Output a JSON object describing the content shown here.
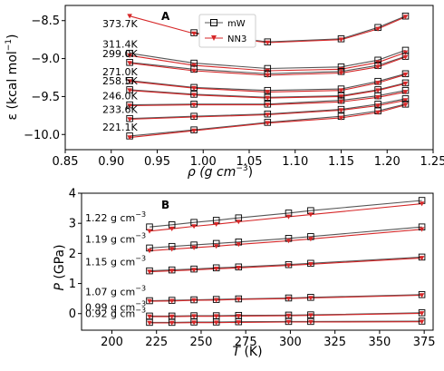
{
  "chart_data": [
    {
      "panel": "A",
      "type": "line",
      "xlabel_main": "ρ (g cm",
      "xlabel_exp": "−3",
      "xlabel_end": ")",
      "ylabel_main": "ε (kcal mol",
      "ylabel_exp": "−1",
      "ylabel_end": ")",
      "xlim": [
        0.85,
        1.25
      ],
      "ylim": [
        -10.2,
        -8.3
      ],
      "xticks": [
        0.85,
        0.9,
        0.95,
        1.0,
        1.05,
        1.1,
        1.15,
        1.2,
        1.25
      ],
      "xtick_labels": [
        "0.85",
        "0.90",
        "0.95",
        "1.00",
        "1.05",
        "1.10",
        "1.15",
        "1.20",
        "1.25"
      ],
      "yticks": [
        -10.0,
        -9.5,
        -9.0,
        -8.5
      ],
      "ytick_labels": [
        "−10.0",
        "−9.5",
        "−9.0",
        "−8.5"
      ],
      "legend": {
        "position": "top-center",
        "entries": [
          "mW",
          "NN3"
        ]
      },
      "x": [
        0.92,
        0.99,
        1.07,
        1.15,
        1.19,
        1.22
      ],
      "curves": [
        {
          "label": "373.7K",
          "mW": [
            null,
            -8.66,
            -8.78,
            -8.74,
            -8.59,
            -8.44
          ],
          "NN3": [
            -8.44,
            -8.67,
            -8.79,
            -8.75,
            -8.61,
            -8.45
          ]
        },
        {
          "label": "311.4K",
          "mW": [
            -8.93,
            -9.06,
            -9.13,
            -9.11,
            -9.02,
            -8.89
          ],
          "NN3": [
            -8.96,
            -9.09,
            -9.16,
            -9.14,
            -9.05,
            -8.92
          ]
        },
        {
          "label": "299.0K",
          "mW": [
            -9.05,
            -9.14,
            -9.2,
            -9.17,
            -9.09,
            -8.97
          ],
          "NN3": [
            -9.06,
            -9.16,
            -9.22,
            -9.19,
            -9.11,
            -8.98
          ]
        },
        {
          "label": "271.0K",
          "mW": [
            -9.29,
            -9.38,
            -9.42,
            -9.4,
            -9.3,
            -9.2
          ],
          "NN3": [
            -9.3,
            -9.39,
            -9.44,
            -9.42,
            -9.32,
            -9.21
          ]
        },
        {
          "label": "258.5K",
          "mW": [
            -9.41,
            -9.47,
            -9.51,
            -9.49,
            -9.41,
            -9.32
          ],
          "NN3": [
            -9.42,
            -9.48,
            -9.52,
            -9.5,
            -9.42,
            -9.33
          ]
        },
        {
          "label": "246.0K",
          "mW": [
            -9.61,
            -9.6,
            -9.6,
            -9.55,
            -9.49,
            -9.42
          ],
          "NN3": [
            -9.62,
            -9.61,
            -9.61,
            -9.57,
            -9.51,
            -9.44
          ]
        },
        {
          "label": "233.6K",
          "mW": [
            -9.79,
            -9.76,
            -9.73,
            -9.67,
            -9.6,
            -9.53
          ],
          "NN3": [
            -9.8,
            -9.77,
            -9.74,
            -9.68,
            -9.62,
            -9.55
          ]
        },
        {
          "label": "221.1K",
          "mW": [
            -10.02,
            -9.94,
            -9.84,
            -9.76,
            -9.69,
            -9.6
          ],
          "NN3": [
            -10.04,
            -9.95,
            -9.85,
            -9.78,
            -9.71,
            -9.61
          ]
        }
      ]
    },
    {
      "panel": "B",
      "type": "line",
      "xlabel_main": "T",
      "xlabel_end": " (K)",
      "ylabel_main": "P",
      "ylabel_end": " (GPa)",
      "xlim": [
        183,
        380
      ],
      "ylim": [
        -0.55,
        4.0
      ],
      "xticks": [
        200,
        225,
        250,
        275,
        300,
        325,
        350,
        375
      ],
      "xtick_labels": [
        "200",
        "225",
        "250",
        "275",
        "300",
        "325",
        "350",
        "375"
      ],
      "yticks": [
        0,
        1,
        2,
        3,
        4
      ],
      "ytick_labels": [
        "0",
        "1",
        "2",
        "3",
        "4"
      ],
      "x": [
        221.1,
        233.6,
        246.0,
        258.5,
        271.0,
        299.0,
        311.4,
        373.7
      ],
      "curves": [
        {
          "label": "1.22 g cm",
          "label_exp": "−3",
          "mW": [
            2.88,
            2.95,
            3.03,
            3.1,
            3.18,
            3.34,
            3.42,
            3.76
          ],
          "NN3": [
            2.74,
            2.82,
            2.9,
            2.97,
            3.05,
            3.22,
            3.29,
            3.65
          ]
        },
        {
          "label": "1.19 g cm",
          "label_exp": "−3",
          "mW": [
            2.18,
            2.23,
            2.28,
            2.33,
            2.38,
            2.5,
            2.56,
            2.88
          ],
          "NN3": [
            2.09,
            2.14,
            2.19,
            2.24,
            2.3,
            2.42,
            2.48,
            2.8
          ]
        },
        {
          "label": "1.15 g cm",
          "label_exp": "−3",
          "mW": [
            1.42,
            1.45,
            1.48,
            1.52,
            1.55,
            1.63,
            1.67,
            1.88
          ],
          "NN3": [
            1.39,
            1.42,
            1.45,
            1.49,
            1.52,
            1.6,
            1.64,
            1.85
          ]
        },
        {
          "label": "1.07 g cm",
          "label_exp": "−3",
          "mW": [
            0.43,
            0.44,
            0.46,
            0.47,
            0.49,
            0.52,
            0.54,
            0.63
          ],
          "NN3": [
            0.41,
            0.42,
            0.44,
            0.45,
            0.47,
            0.5,
            0.52,
            0.61
          ]
        },
        {
          "label": "0.99 g cm",
          "label_exp": "−3",
          "mW": [
            -0.08,
            -0.08,
            -0.07,
            -0.07,
            -0.06,
            -0.05,
            -0.04,
            0.03
          ],
          "NN3": [
            -0.1,
            -0.1,
            -0.09,
            -0.09,
            -0.08,
            -0.07,
            -0.06,
            0.01
          ]
        },
        {
          "label": "0.92 g cm",
          "label_exp": "−3",
          "mW": [
            -0.29,
            -0.29,
            -0.28,
            -0.28,
            -0.27,
            -0.26,
            -0.26,
            -0.25
          ],
          "NN3": [
            -0.31,
            -0.31,
            -0.3,
            -0.3,
            -0.29,
            -0.28,
            -0.28,
            -0.27
          ]
        }
      ]
    }
  ],
  "colors": {
    "mW": "#000000",
    "NN3": "#d62728",
    "mW_line": "#555555"
  }
}
